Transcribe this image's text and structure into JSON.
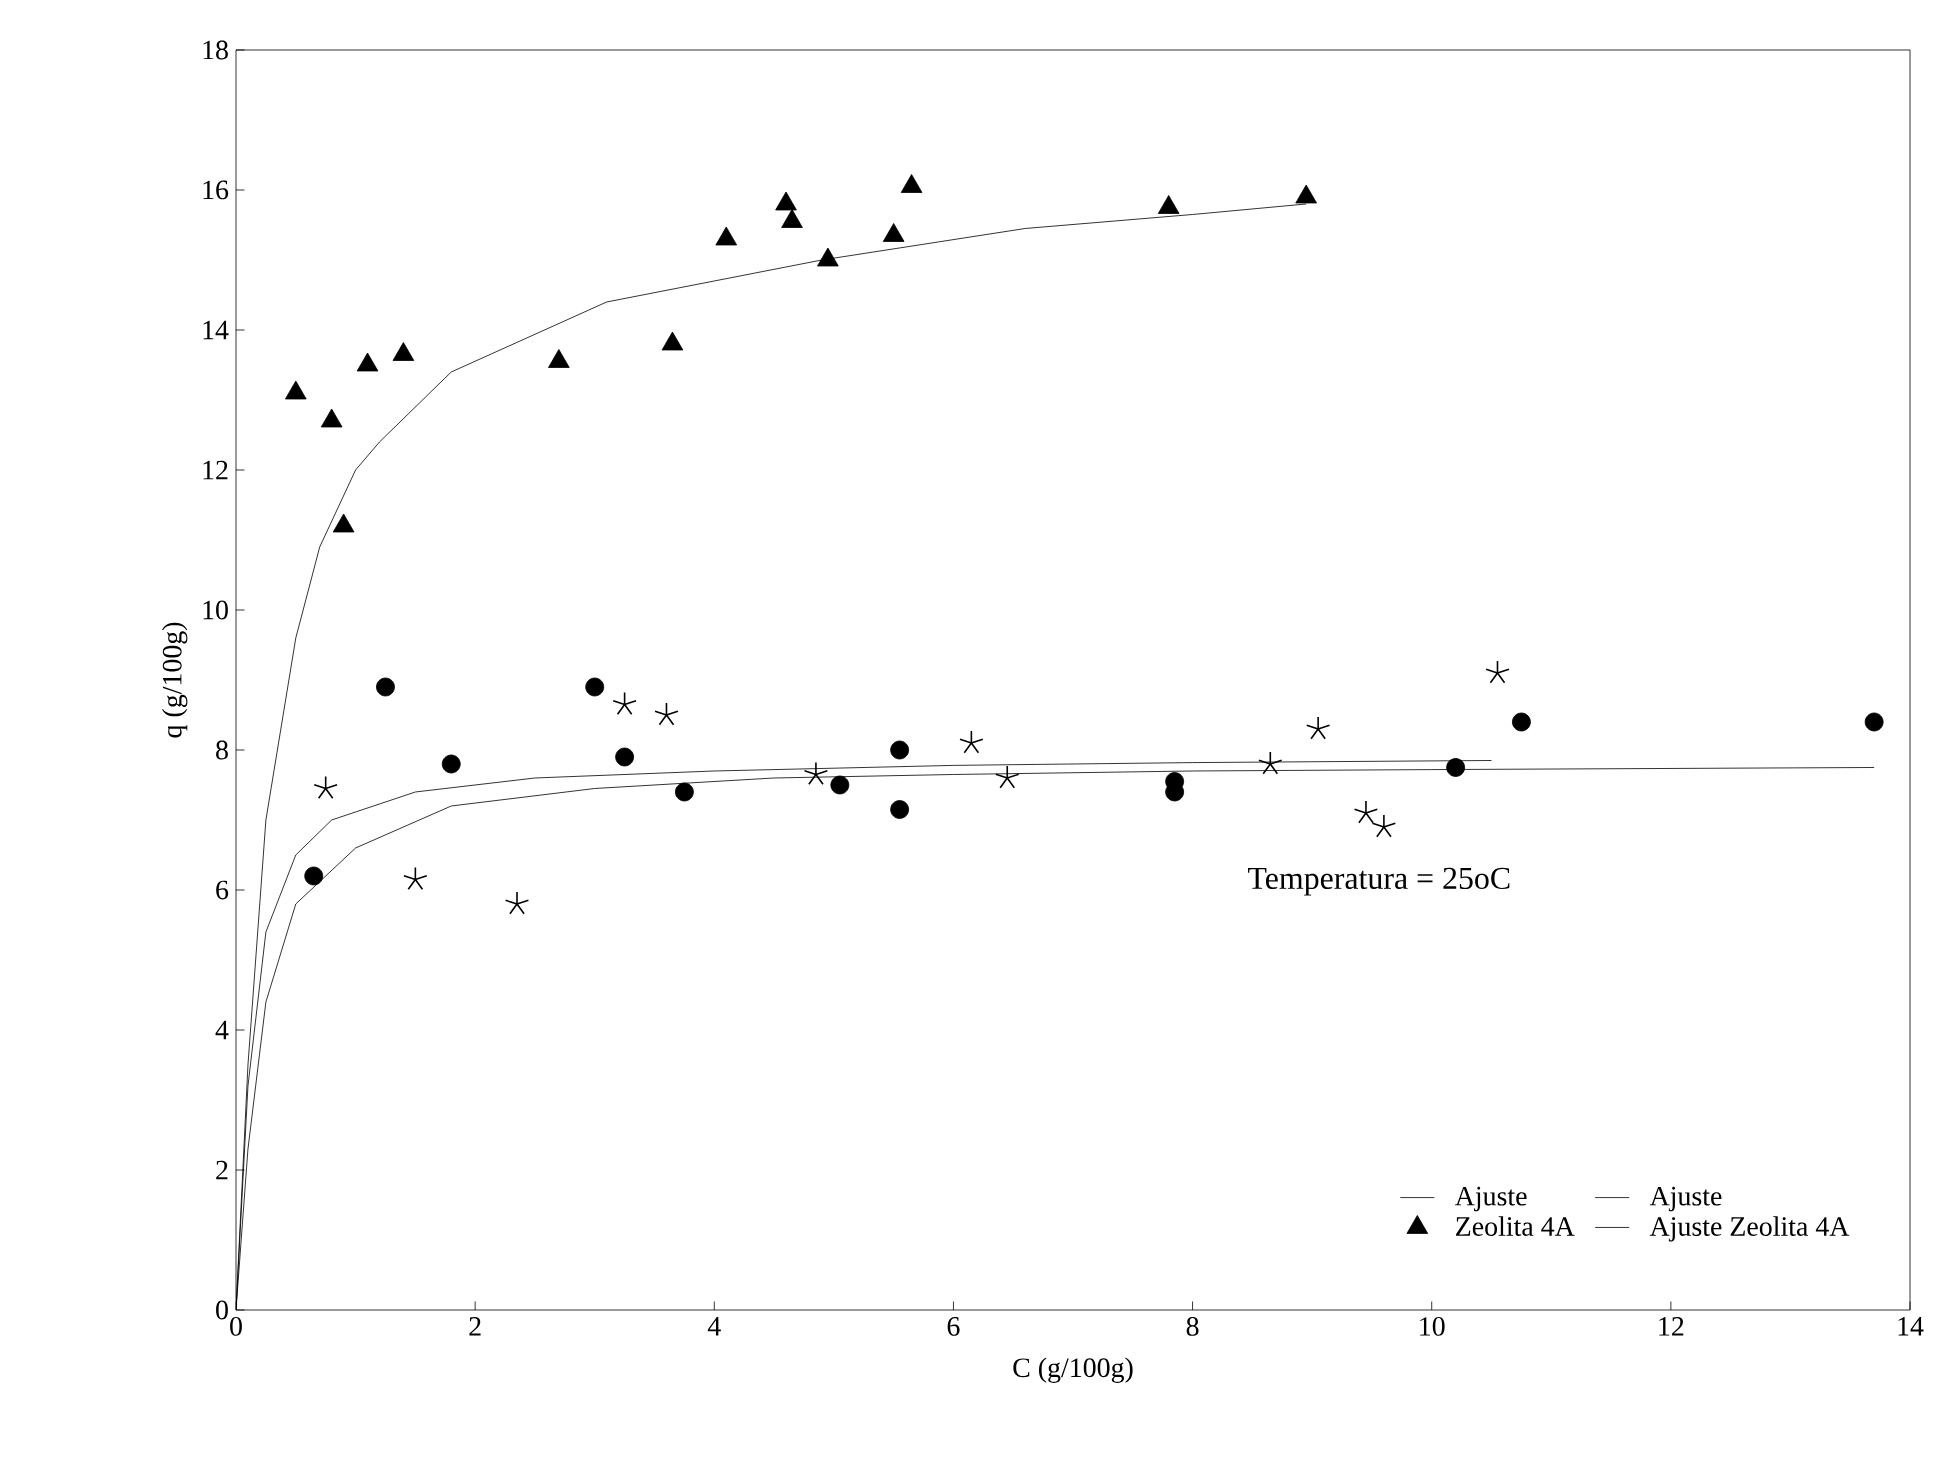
{
  "chart_data": {
    "type": "scatter",
    "xlabel": "C (g/100g)",
    "ylabel": "q (g/100g)",
    "xlim": [
      0,
      14
    ],
    "ylim": [
      0,
      18
    ],
    "xticks": [
      0,
      2,
      4,
      6,
      8,
      10,
      12,
      14
    ],
    "yticks": [
      0,
      2,
      4,
      6,
      8,
      10,
      12,
      14,
      16,
      18
    ],
    "grid": false,
    "legend": "bottom right",
    "annotations": [
      "Temperatura = 25oC"
    ],
    "series": [
      {
        "marker": "circle",
        "color": "#000000",
        "x": [
          0.65,
          1.25,
          1.8,
          3.0,
          3.25,
          3.75,
          5.05,
          5.55,
          5.55,
          7.85,
          7.85,
          10.2,
          10.75,
          13.7
        ],
        "values": [
          6.2,
          8.9,
          7.8,
          8.9,
          7.9,
          7.4,
          7.5,
          8.0,
          7.15,
          7.55,
          7.4,
          7.75,
          8.4,
          8.4
        ]
      },
      {
        "type": "line",
        "name": "Ajuste",
        "marker": "none",
        "color": "#000000",
        "x": [
          0,
          0.1,
          0.25,
          0.5,
          1.0,
          1.8,
          3.0,
          4.5,
          6.0,
          8.0,
          10.0,
          13.7
        ],
        "values": [
          0,
          2.3,
          4.4,
          5.8,
          6.6,
          7.2,
          7.45,
          7.6,
          7.65,
          7.7,
          7.72,
          7.75
        ]
      },
      {
        "marker": "cross",
        "color": "#000000",
        "x": [
          0.75,
          1.5,
          2.35,
          3.25,
          3.6,
          4.85,
          6.15,
          6.45,
          8.65,
          9.05,
          9.45,
          9.6,
          10.55
        ],
        "values": [
          7.45,
          6.15,
          5.8,
          8.65,
          8.5,
          7.65,
          8.1,
          7.6,
          7.8,
          8.3,
          7.1,
          6.9,
          9.1
        ]
      },
      {
        "type": "line",
        "name": "Ajuste",
        "marker": "none",
        "color": "#000000",
        "x": [
          0,
          0.1,
          0.25,
          0.5,
          0.8,
          1.5,
          2.5,
          4.0,
          6.0,
          8.0,
          10.5
        ],
        "values": [
          0,
          3.2,
          5.4,
          6.5,
          7.0,
          7.4,
          7.6,
          7.7,
          7.78,
          7.82,
          7.85
        ]
      },
      {
        "name": "Zeolita 4A",
        "marker": "triangle",
        "color": "#000000",
        "x": [
          0.5,
          0.8,
          0.9,
          1.1,
          1.4,
          2.7,
          3.65,
          4.1,
          4.6,
          4.65,
          4.95,
          5.5,
          5.65,
          7.8,
          8.95
        ],
        "values": [
          13.1,
          12.7,
          11.2,
          13.5,
          13.65,
          13.55,
          13.8,
          15.3,
          15.8,
          15.55,
          15.0,
          15.35,
          16.05,
          15.75,
          15.9
        ]
      },
      {
        "type": "line",
        "name": "Ajuste Zeolita 4A",
        "marker": "none",
        "color": "#000000",
        "x": [
          0,
          0.1,
          0.25,
          0.5,
          0.7,
          1.0,
          1.2,
          1.8,
          3.1,
          4.9,
          6.6,
          8.0,
          8.95
        ],
        "values": [
          0,
          3.5,
          7.0,
          9.6,
          10.9,
          12.0,
          12.4,
          13.4,
          14.4,
          15.0,
          15.45,
          15.65,
          15.8
        ]
      }
    ]
  }
}
